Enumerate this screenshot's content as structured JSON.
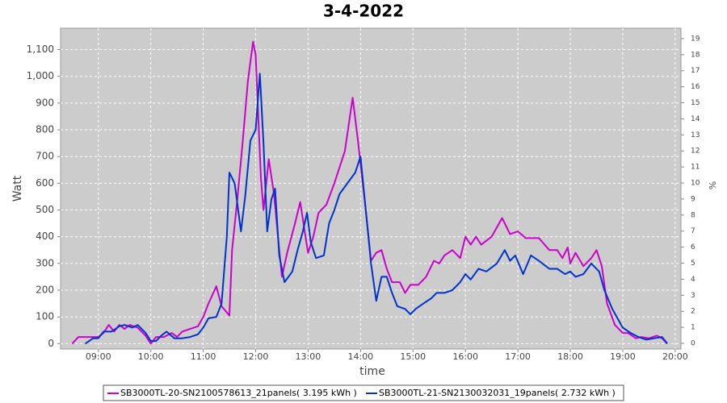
{
  "chart_data": {
    "type": "line",
    "title": "3-4-2022",
    "x_label": "time",
    "y_label": "Watt",
    "y2_label": "%",
    "xlim": [
      8.28,
      20.11
    ],
    "xticks": [
      {
        "value": 9,
        "label": "09:00"
      },
      {
        "value": 10,
        "label": "10:00"
      },
      {
        "value": 11,
        "label": "11:00"
      },
      {
        "value": 12,
        "label": "12:00"
      },
      {
        "value": 13,
        "label": "13:00"
      },
      {
        "value": 14,
        "label": "14:00"
      },
      {
        "value": 15,
        "label": "15:00"
      },
      {
        "value": 16,
        "label": "16:00"
      },
      {
        "value": 17,
        "label": "17:00"
      },
      {
        "value": 18,
        "label": "18:00"
      },
      {
        "value": 19,
        "label": "19:00"
      },
      {
        "value": 20,
        "label": "20:00"
      }
    ],
    "ylim": [
      -20,
      1180
    ],
    "yticks": [
      0,
      100,
      200,
      300,
      400,
      500,
      600,
      700,
      800,
      900,
      {
        "value": 1000,
        "label": "1,000"
      },
      {
        "value": 1100,
        "label": "1,100"
      }
    ],
    "y2lim": [
      -0.35,
      19.65
    ],
    "y2ticks": [
      0,
      1,
      2,
      3,
      4,
      5,
      6,
      7,
      8,
      9,
      10,
      11,
      12,
      13,
      14,
      15,
      16,
      17,
      18,
      19
    ],
    "grid": true,
    "legend": "bottom",
    "series": [
      {
        "name": "SB3000TL-20-SN2100578613_21panels( 3.195 kWh )",
        "color": "#cc00cc",
        "x": [
          8.5,
          8.62,
          8.75,
          9.0,
          9.1,
          9.2,
          9.3,
          9.4,
          9.5,
          9.6,
          9.75,
          9.9,
          10.0,
          10.1,
          10.25,
          10.4,
          10.5,
          10.6,
          10.75,
          10.9,
          11.0,
          11.1,
          11.25,
          11.35,
          11.5,
          11.55,
          11.65,
          11.75,
          11.85,
          11.95,
          12.0,
          12.1,
          12.15,
          12.25,
          12.35,
          12.45,
          12.5,
          12.6,
          12.75,
          12.85,
          12.95,
          13.0,
          13.1,
          13.2,
          13.35,
          13.5,
          13.7,
          13.85,
          13.95,
          14.1,
          14.2,
          14.3,
          14.4,
          14.5,
          14.6,
          14.75,
          14.85,
          14.95,
          15.1,
          15.25,
          15.4,
          15.5,
          15.6,
          15.75,
          15.9,
          16.0,
          16.1,
          16.2,
          16.3,
          16.5,
          16.7,
          16.85,
          17.0,
          17.15,
          17.4,
          17.6,
          17.75,
          17.85,
          17.95,
          18.0,
          18.1,
          18.25,
          18.4,
          18.5,
          18.6,
          18.7,
          18.85,
          19.0,
          19.1,
          19.25,
          19.35,
          19.5,
          19.65,
          19.75,
          19.85
        ],
        "values": [
          0,
          25,
          25,
          25,
          40,
          70,
          45,
          70,
          55,
          70,
          60,
          30,
          0,
          25,
          25,
          40,
          25,
          45,
          55,
          65,
          100,
          150,
          215,
          140,
          105,
          350,
          540,
          750,
          980,
          1130,
          1080,
          620,
          500,
          690,
          560,
          350,
          250,
          340,
          450,
          530,
          400,
          340,
          400,
          490,
          520,
          600,
          720,
          920,
          760,
          500,
          310,
          340,
          350,
          280,
          230,
          230,
          190,
          220,
          220,
          250,
          310,
          300,
          330,
          350,
          320,
          400,
          370,
          400,
          370,
          400,
          470,
          410,
          420,
          395,
          395,
          350,
          350,
          320,
          360,
          300,
          340,
          290,
          320,
          350,
          290,
          150,
          70,
          40,
          40,
          20,
          25,
          20,
          30,
          20,
          0
        ]
      },
      {
        "name": "SB3000TL-21-SN2130032031_19panels( 2.732 kWh )",
        "color": "#0033cc",
        "x": [
          8.75,
          8.9,
          9.0,
          9.1,
          9.25,
          9.4,
          9.5,
          9.65,
          9.75,
          9.9,
          10.0,
          10.1,
          10.2,
          10.3,
          10.45,
          10.6,
          10.75,
          10.9,
          11.0,
          11.1,
          11.25,
          11.35,
          11.45,
          11.5,
          11.6,
          11.72,
          11.8,
          11.9,
          12.0,
          12.08,
          12.15,
          12.22,
          12.3,
          12.37,
          12.45,
          12.55,
          12.7,
          12.8,
          12.9,
          12.98,
          13.05,
          13.15,
          13.3,
          13.4,
          13.5,
          13.6,
          13.75,
          13.9,
          14.0,
          14.1,
          14.2,
          14.3,
          14.4,
          14.5,
          14.6,
          14.7,
          14.85,
          14.95,
          15.05,
          15.2,
          15.35,
          15.45,
          15.6,
          15.75,
          15.9,
          16.0,
          16.1,
          16.25,
          16.4,
          16.6,
          16.75,
          16.85,
          16.95,
          17.1,
          17.25,
          17.4,
          17.6,
          17.75,
          17.9,
          18.0,
          18.1,
          18.25,
          18.4,
          18.55,
          18.65,
          18.8,
          19.0,
          19.15,
          19.3,
          19.45,
          19.6,
          19.75,
          19.85
        ],
        "values": [
          0,
          20,
          20,
          45,
          45,
          65,
          70,
          60,
          70,
          40,
          10,
          10,
          30,
          45,
          20,
          20,
          25,
          35,
          60,
          95,
          100,
          150,
          400,
          640,
          600,
          420,
          550,
          760,
          800,
          1010,
          750,
          420,
          540,
          580,
          330,
          230,
          270,
          350,
          420,
          490,
          380,
          320,
          330,
          450,
          500,
          560,
          600,
          640,
          700,
          500,
          300,
          160,
          250,
          250,
          190,
          140,
          130,
          110,
          130,
          150,
          170,
          190,
          190,
          200,
          230,
          260,
          240,
          280,
          270,
          300,
          350,
          310,
          330,
          260,
          330,
          310,
          280,
          280,
          260,
          270,
          250,
          260,
          300,
          270,
          200,
          130,
          60,
          40,
          25,
          15,
          20,
          25,
          0
        ]
      }
    ]
  }
}
